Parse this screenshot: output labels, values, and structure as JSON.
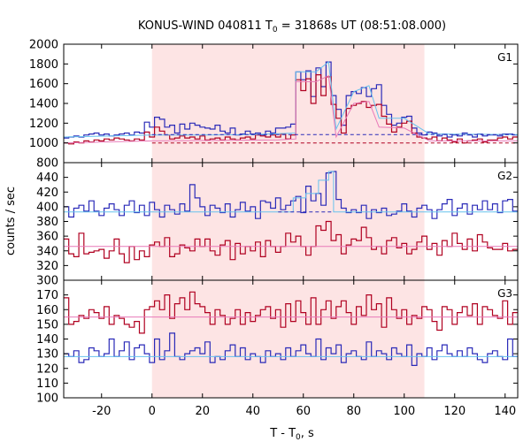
{
  "chart_data": {
    "type": "line",
    "title": {
      "prefix": "KONUS-WIND 040811 T",
      "sub": "0",
      "suffix": " = 31868s UT (08:51:08.000)"
    },
    "xlabel": {
      "prefix": "T - T",
      "sub": "0",
      "suffix": ", s"
    },
    "ylabel": "counts / sec",
    "xlim": [
      -35,
      145
    ],
    "xticks": [
      "-20",
      "0",
      "20",
      "40",
      "60",
      "80",
      "100",
      "120",
      "140"
    ],
    "shaded_interval": [
      0,
      108
    ],
    "colors": {
      "shade": "#fde4e4",
      "blue_hist": "#2a2ab8",
      "red_hist": "#b00020",
      "light_blue": "#66c2ee",
      "pink": "#e879b8"
    },
    "panels": [
      {
        "label": "G1",
        "ylim": [
          800,
          2000
        ],
        "yticks": [
          "800",
          "1000",
          "1200",
          "1400",
          "1600",
          "1800",
          "2000"
        ],
        "background_levels": {
          "blue": 1085,
          "red": 1000
        },
        "blue_bg_x": [
          [
            -35,
            1050
          ],
          [
            -30,
            1065
          ],
          [
            -25,
            1080
          ],
          [
            -20,
            1090
          ],
          [
            -10,
            1100
          ],
          [
            0,
            1120
          ],
          [
            10,
            1140
          ],
          [
            20,
            1150
          ],
          [
            30,
            1140
          ],
          [
            40,
            1120
          ],
          [
            50,
            1100
          ],
          [
            60,
            1085
          ],
          [
            110,
            1085
          ],
          [
            145,
            1085
          ]
        ],
        "series": [
          {
            "color_key": "blue_hist",
            "x0": -35,
            "dx": 2,
            "values": [
              1050,
              1060,
              1070,
              1060,
              1080,
              1090,
              1100,
              1080,
              1090,
              1070,
              1080,
              1090,
              1100,
              1080,
              1110,
              1100,
              1210,
              1160,
              1260,
              1240,
              1160,
              1180,
              1100,
              1190,
              1140,
              1200,
              1180,
              1160,
              1150,
              1140,
              1180,
              1120,
              1100,
              1150,
              1080,
              1090,
              1120,
              1090,
              1100,
              1080,
              1120,
              1100,
              1150,
              1150,
              1160,
              1190,
              1720,
              1640,
              1730,
              1470,
              1760,
              1570,
              1820,
              1480,
              1340,
              1180,
              1480,
              1520,
              1500,
              1560,
              1470,
              1550,
              1590,
              1380,
              1290,
              1180,
              1200,
              1260,
              1270,
              1150,
              1100,
              1080,
              1110,
              1100,
              1070,
              1090,
              1060,
              1080,
              1070,
              1100,
              1080,
              1060,
              1090,
              1070,
              1080,
              1080,
              1070,
              1090,
              1090,
              1080
            ]
          },
          {
            "color_key": "red_hist",
            "x0": -35,
            "dx": 2,
            "values": [
              1000,
              990,
              1010,
              1000,
              1020,
              1010,
              1030,
              1020,
              1040,
              1030,
              1050,
              1040,
              1030,
              1020,
              1040,
              1030,
              1110,
              1060,
              1160,
              1120,
              1080,
              1040,
              1050,
              1070,
              1050,
              1060,
              1040,
              1070,
              1030,
              1040,
              1050,
              1030,
              1060,
              1040,
              1030,
              1050,
              1060,
              1040,
              1080,
              1070,
              1060,
              1080,
              1060,
              1090,
              1040,
              1080,
              1640,
              1530,
              1650,
              1400,
              1690,
              1480,
              1670,
              1390,
              1250,
              1100,
              1350,
              1380,
              1400,
              1420,
              1360,
              1380,
              1390,
              1270,
              1190,
              1110,
              1160,
              1200,
              1220,
              1100,
              1060,
              1050,
              1040,
              1060,
              1020,
              1050,
              1030,
              1010,
              1040,
              1000,
              1020,
              1030,
              1040,
              1010,
              1030,
              1030,
              1050,
              1060,
              1040,
              1060
            ]
          }
        ],
        "fit_lines": [
          {
            "color_key": "light_blue",
            "style": "solid",
            "points": [
              [
                -35,
                1060
              ],
              [
                0,
                1080
              ],
              [
                20,
                1080
              ],
              [
                40,
                1085
              ],
              [
                57,
                1100
              ],
              [
                57,
                1720
              ],
              [
                65,
                1720
              ],
              [
                70,
                1820
              ],
              [
                73,
                1140
              ],
              [
                80,
                1520
              ],
              [
                86,
                1580
              ],
              [
                90,
                1250
              ],
              [
                100,
                1250
              ],
              [
                110,
                1090
              ],
              [
                145,
                1085
              ]
            ]
          },
          {
            "color_key": "pink",
            "style": "solid",
            "points": [
              [
                -35,
                1000
              ],
              [
                0,
                1020
              ],
              [
                50,
                1030
              ],
              [
                57,
                1040
              ],
              [
                57,
                1620
              ],
              [
                65,
                1620
              ],
              [
                70,
                1680
              ],
              [
                73,
                1060
              ],
              [
                80,
                1400
              ],
              [
                86,
                1420
              ],
              [
                90,
                1160
              ],
              [
                100,
                1150
              ],
              [
                110,
                1020
              ],
              [
                145,
                1020
              ]
            ]
          },
          {
            "color_key": "blue_hist",
            "style": "dashed",
            "points": [
              [
                0,
                1085
              ],
              [
                145,
                1085
              ]
            ]
          },
          {
            "color_key": "red_hist",
            "style": "dashed",
            "points": [
              [
                0,
                1000
              ],
              [
                145,
                1000
              ]
            ]
          }
        ]
      },
      {
        "label": "G2",
        "ylim": [
          300,
          460
        ],
        "yticks": [
          "300",
          "320",
          "340",
          "360",
          "380",
          "400",
          "420",
          "440"
        ],
        "series": [
          {
            "color_key": "blue_hist",
            "x0": -35,
            "dx": 2,
            "values": [
              400,
              386,
              398,
              402,
              394,
              408,
              394,
              388,
              398,
              404,
              396,
              388,
              402,
              408,
              392,
              402,
              388,
              406,
              396,
              386,
              402,
              396,
              390,
              404,
              394,
              430,
              412,
              400,
              388,
              402,
              398,
              392,
              404,
              386,
              396,
              406,
              394,
              400,
              384,
              408,
              406,
              398,
              412,
              396,
              402,
              408,
              414,
              392,
              428,
              408,
              418,
              402,
              446,
              448,
              410,
              398,
              392,
              396,
              392,
              402,
              384,
              396,
              392,
              398,
              388,
              390,
              394,
              404,
              394,
              386,
              398,
              402,
              396,
              384,
              396,
              404,
              410,
              388,
              398,
              404,
              390,
              402,
              396,
              408,
              396,
              404,
              392,
              408,
              410,
              394
            ]
          },
          {
            "color_key": "red_hist",
            "x0": -35,
            "dx": 2,
            "values": [
              356,
              336,
              332,
              364,
              336,
              338,
              340,
              342,
              330,
              340,
              356,
              336,
              324,
              346,
              328,
              340,
              332,
              348,
              352,
              346,
              358,
              332,
              336,
              348,
              344,
              340,
              356,
              346,
              356,
              340,
              334,
              348,
              354,
              328,
              350,
              336,
              346,
              340,
              352,
              332,
              354,
              346,
              338,
              346,
              364,
              352,
              360,
              346,
              334,
              346,
              374,
              368,
              380,
              354,
              362,
              336,
              348,
              356,
              354,
              372,
              358,
              342,
              346,
              336,
              354,
              358,
              344,
              350,
              336,
              342,
              352,
              360,
              342,
              350,
              334,
              354,
              346,
              364,
              350,
              342,
              356,
              340,
              362,
              352,
              344,
              342,
              342,
              350,
              340,
              342
            ]
          }
        ],
        "fit_lines": [
          {
            "color_key": "light_blue",
            "style": "solid",
            "points": [
              [
                -35,
                393
              ],
              [
                50,
                393
              ],
              [
                56,
                393
              ],
              [
                56,
                412
              ],
              [
                61,
                412
              ],
              [
                61,
                418
              ],
              [
                66,
                418
              ],
              [
                66,
                436
              ],
              [
                70,
                436
              ],
              [
                70,
                448
              ],
              [
                72,
                448
              ],
              [
                72,
                393
              ],
              [
                145,
                393
              ]
            ]
          },
          {
            "color_key": "pink",
            "style": "solid",
            "points": [
              [
                -35,
                346
              ],
              [
                145,
                346
              ]
            ]
          },
          {
            "color_key": "blue_hist",
            "style": "dashed",
            "points": [
              [
                50,
                393
              ],
              [
                72,
                393
              ]
            ]
          }
        ]
      },
      {
        "label": "G3",
        "ylim": [
          100,
          180
        ],
        "yticks": [
          "100",
          "110",
          "120",
          "130",
          "140",
          "150",
          "160",
          "170"
        ],
        "series": [
          {
            "color_key": "red_hist",
            "x0": -35,
            "dx": 2,
            "values": [
              168,
              150,
              152,
              156,
              154,
              160,
              158,
              154,
              162,
              150,
              156,
              154,
              150,
              148,
              152,
              144,
              160,
              162,
              166,
              160,
              170,
              154,
              164,
              168,
              160,
              172,
              164,
              162,
              158,
              150,
              160,
              156,
              150,
              154,
              160,
              150,
              158,
              152,
              156,
              160,
              162,
              154,
              160,
              148,
              164,
              152,
              166,
              158,
              150,
              168,
              150,
              160,
              166,
              154,
              162,
              166,
              158,
              150,
              162,
              156,
              170,
              160,
              164,
              148,
              168,
              160,
              154,
              160,
              150,
              156,
              154,
              162,
              160,
              152,
              146,
              162,
              160,
              150,
              158,
              162,
              156,
              164,
              150,
              162,
              160,
              156,
              154,
              166,
              150,
              158
            ]
          },
          {
            "color_key": "blue_hist",
            "x0": -35,
            "dx": 2,
            "values": [
              130,
              128,
              132,
              124,
              126,
              134,
              132,
              128,
              130,
              140,
              128,
              132,
              138,
              126,
              134,
              136,
              130,
              124,
              140,
              126,
              132,
              144,
              128,
              126,
              130,
              132,
              134,
              130,
              138,
              124,
              128,
              126,
              132,
              136,
              128,
              134,
              126,
              130,
              128,
              124,
              132,
              128,
              130,
              126,
              134,
              128,
              132,
              136,
              130,
              128,
              140,
              126,
              134,
              130,
              136,
              124,
              130,
              132,
              128,
              126,
              138,
              128,
              132,
              130,
              126,
              134,
              130,
              128,
              136,
              122,
              130,
              128,
              134,
              126,
              132,
              136,
              130,
              128,
              132,
              128,
              134,
              130,
              126,
              124,
              130,
              132,
              128,
              126,
              140,
              128
            ]
          }
        ],
        "fit_lines": [
          {
            "color_key": "pink",
            "style": "solid",
            "points": [
              [
                -35,
                155
              ],
              [
                145,
                155
              ]
            ]
          },
          {
            "color_key": "light_blue",
            "style": "solid",
            "points": [
              [
                -35,
                128
              ],
              [
                145,
                128
              ]
            ]
          }
        ]
      }
    ]
  }
}
